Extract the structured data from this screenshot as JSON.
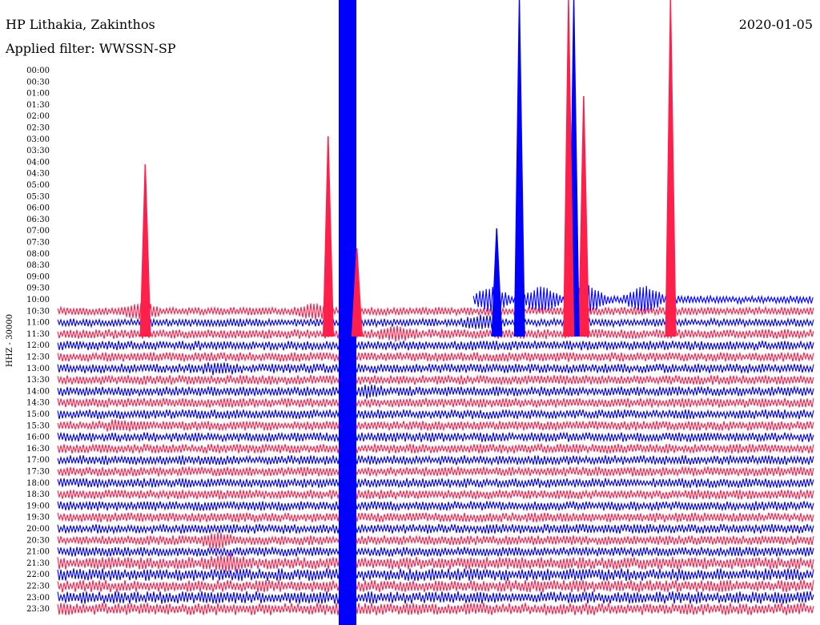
{
  "header": {
    "station": "HP Lithakia, Zakinthos",
    "date": "2020-01-05",
    "filter_label": "Applied filter: WWSSN-SP"
  },
  "chart_data": {
    "type": "line",
    "title": "HP Lithakia, Zakinthos",
    "subtitle": "Applied filter: WWSSN-SP",
    "ylabel": "HHZ - 30000",
    "ylim_start": "00:00",
    "ylim_end": "24:00",
    "grid": false,
    "tick_labels": [
      "00:00",
      "00:30",
      "01:00",
      "01:30",
      "02:00",
      "02:30",
      "03:00",
      "03:30",
      "04:00",
      "04:30",
      "05:00",
      "05:30",
      "06:00",
      "06:30",
      "07:00",
      "07:30",
      "08:00",
      "08:30",
      "09:00",
      "09:30",
      "10:00",
      "10:30",
      "11:00",
      "11:30",
      "12:00",
      "12:30",
      "13:00",
      "13:30",
      "14:00",
      "14:30",
      "15:00",
      "15:30",
      "16:00",
      "16:30",
      "17:00",
      "17:30",
      "18:00",
      "18:30",
      "19:00",
      "19:30",
      "20:00",
      "20:30",
      "21:00",
      "21:30",
      "22:00",
      "22:30",
      "23:00",
      "23:30"
    ],
    "first_trace_row": 20,
    "first_trace_start_fraction": 0.55,
    "colors": [
      "#0000ff",
      "#ff1f4b"
    ],
    "events": [
      {
        "row": 20,
        "x_fraction": 0.388,
        "amplitude": 18,
        "color_index": 1
      },
      {
        "row": 20,
        "x_fraction": 0.573,
        "amplitude": 12,
        "color_index": 1
      },
      {
        "row": 20,
        "x_fraction": 0.64,
        "amplitude": 13,
        "color_index": 0
      },
      {
        "row": 20,
        "x_fraction": 0.698,
        "amplitude": 16,
        "color_index": 0
      },
      {
        "row": 20,
        "x_fraction": 0.776,
        "amplitude": 14,
        "color_index": 1
      },
      {
        "row": 21,
        "x_fraction": 0.11,
        "amplitude": 8,
        "color_index": 1
      },
      {
        "row": 21,
        "x_fraction": 0.34,
        "amplitude": 7,
        "color_index": 1
      },
      {
        "row": 22,
        "x_fraction": 0.56,
        "amplitude": 6,
        "color_index": 0
      },
      {
        "row": 23,
        "x_fraction": 0.45,
        "amplitude": 5,
        "color_index": 1
      },
      {
        "row": 26,
        "x_fraction": 0.215,
        "amplitude": 4,
        "color_index": 1
      },
      {
        "row": 28,
        "x_fraction": 0.412,
        "amplitude": 4,
        "color_index": 0
      },
      {
        "row": 31,
        "x_fraction": 0.08,
        "amplitude": 3,
        "color_index": 1
      },
      {
        "row": 41,
        "x_fraction": 0.21,
        "amplitude": 6,
        "color_index": 1
      },
      {
        "row": 43,
        "x_fraction": 0.225,
        "amplitude": 6,
        "color_index": 1
      }
    ],
    "big_event": {
      "x_fraction": 0.375,
      "from_row": 0,
      "to_row": 47,
      "color_index": 0
    }
  }
}
